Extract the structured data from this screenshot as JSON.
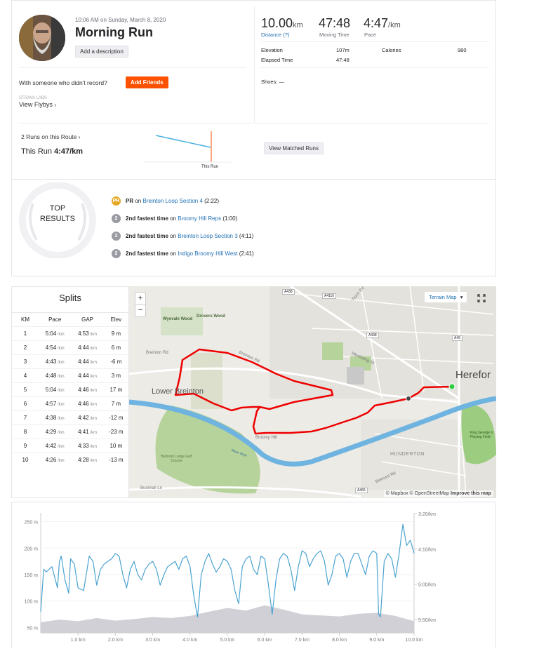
{
  "activity": {
    "datetime": "10:06 AM on Sunday, March 8, 2020",
    "title": "Morning Run",
    "add_description": "Add a description",
    "with_someone": "With someone who didn't record?",
    "add_friends": "Add Friends",
    "labs_label": "STRAVA LABS",
    "view_flybys": "View Flybys"
  },
  "stats": {
    "distance_value": "10.00",
    "distance_unit": "km",
    "distance_label": "Distance (?)",
    "moving_time_value": "47:48",
    "moving_time_label": "Moving Time",
    "pace_value": "4:47",
    "pace_unit": "/km",
    "pace_label": "Pace",
    "elevation_label": "Elevation",
    "elevation_value": "107m",
    "calories_label": "Calories",
    "calories_value": "980",
    "elapsed_label": "Elapsed Time",
    "elapsed_value": "47:48",
    "shoes": "Shoes: —"
  },
  "route": {
    "runs_on_route": "2 Runs on this Route",
    "this_run_label": "This Run",
    "this_run_pace": "4:47/km",
    "chart_label": "This Run",
    "view_matched": "View Matched Runs"
  },
  "top_results": {
    "title_line1": "TOP",
    "title_line2": "RESULTS",
    "items": [
      {
        "badge": "PR",
        "badge_color": "#e5a823",
        "prefix": "PR",
        "on": "on",
        "segment": "Breinton Loop Section 4",
        "time": "(2:22)"
      },
      {
        "badge": "2",
        "badge_color": "#9a9aa2",
        "prefix": "2nd fastest time",
        "on": "on",
        "segment": "Broomy Hill Reps",
        "time": "(1:00)"
      },
      {
        "badge": "2",
        "badge_color": "#9a9aa2",
        "prefix": "2nd fastest time",
        "on": "on",
        "segment": "Breinton Loop Section 3",
        "time": "(4:11)"
      },
      {
        "badge": "2",
        "badge_color": "#9a9aa2",
        "prefix": "2nd fastest time",
        "on": "on",
        "segment": "Indigo Broomy Hill West",
        "time": "(2:41)"
      }
    ]
  },
  "splits": {
    "title": "Splits",
    "headers": [
      "KM",
      "Pace",
      "GAP",
      "Elev"
    ],
    "pace_unit": "/km",
    "rows": [
      {
        "km": "1",
        "pace": "5:04",
        "gap": "4:53",
        "elev": "9 m"
      },
      {
        "km": "2",
        "pace": "4:54",
        "gap": "4:44",
        "elev": "6 m"
      },
      {
        "km": "3",
        "pace": "4:43",
        "gap": "4:44",
        "elev": "-6 m"
      },
      {
        "km": "4",
        "pace": "4:48",
        "gap": "4:44",
        "elev": "3 m"
      },
      {
        "km": "5",
        "pace": "5:04",
        "gap": "4:46",
        "elev": "17 m"
      },
      {
        "km": "6",
        "pace": "4:57",
        "gap": "4:46",
        "elev": "7 m"
      },
      {
        "km": "7",
        "pace": "4:38",
        "gap": "4:42",
        "elev": "-12 m"
      },
      {
        "km": "8",
        "pace": "4:29",
        "gap": "4:41",
        "elev": "-23 m"
      },
      {
        "km": "9",
        "pace": "4:42",
        "gap": "4:33",
        "elev": "10 m"
      },
      {
        "km": "10",
        "pace": "4:26",
        "gap": "4:28",
        "elev": "-13 m"
      }
    ]
  },
  "map": {
    "zoom_in": "+",
    "zoom_out": "−",
    "map_type": "Terrain Map",
    "attribution": "© Mapbox © OpenStreetMap",
    "improve": "Improve this map",
    "labels": {
      "wyevale": "Wyevale Wood",
      "drovers": "Drovers Wood",
      "breinton_rd": "Breinton Rd",
      "breinton_rd2": "Breinton Rd",
      "lower_breinton": "Lower Breinton",
      "broomy_hill": "Broomy Hill",
      "belmont_lodge": "Belmont Lodge Golf Course",
      "hunderton": "HUNDERTON",
      "belmont_rd": "Belmont Rd",
      "hereford": "Herefor",
      "westfaling": "Westfaling St",
      "king_george": "King George V Playing Field",
      "bucknall": "Bucknall Ln",
      "yazor": "Yazor Rd",
      "a438_1": "A438",
      "a4110": "A4110",
      "a438_2": "A438",
      "a49": "A49",
      "a465": "A465",
      "river_wye": "River Wye"
    }
  },
  "chart_data": {
    "type": "line",
    "title": "",
    "xlabel": "",
    "ylabel": "",
    "x_ticks": [
      "1.0 km",
      "2.0 km",
      "3.0 km",
      "4.0 km",
      "5.0 km",
      "6.0 km",
      "7.0 km",
      "8.0 km",
      "9.0 km",
      "10.0 km"
    ],
    "xlim": [
      0,
      10
    ],
    "y_left_ticks": [
      "250 m",
      "200 m",
      "150 m",
      "100 m",
      "50 m"
    ],
    "y_left_lim": [
      40,
      260
    ],
    "y_right_ticks": [
      "3:20/km",
      "4:10/km",
      "5:00/km",
      "5:50/km"
    ],
    "series": [
      {
        "color": "#4aa3d1",
        "x": [
          0,
          0.08,
          0.15,
          0.3,
          0.45,
          0.5,
          0.55,
          0.65,
          0.75,
          0.8,
          0.9,
          1.0,
          1.15,
          1.3,
          1.4,
          1.5,
          1.6,
          1.7,
          1.8,
          1.9,
          2.0,
          2.1,
          2.2,
          2.3,
          2.4,
          2.5,
          2.6,
          2.7,
          2.8,
          2.9,
          3.0,
          3.1,
          3.2,
          3.3,
          3.4,
          3.5,
          3.6,
          3.7,
          3.8,
          3.9,
          4.0,
          4.1,
          4.2,
          4.3,
          4.4,
          4.5,
          4.6,
          4.7,
          4.8,
          4.9,
          5.0,
          5.1,
          5.2,
          5.3,
          5.4,
          5.5,
          5.6,
          5.7,
          5.8,
          5.9,
          6.0,
          6.1,
          6.2,
          6.3,
          6.4,
          6.5,
          6.6,
          6.7,
          6.8,
          6.9,
          7.0,
          7.1,
          7.2,
          7.3,
          7.4,
          7.5,
          7.6,
          7.7,
          7.8,
          7.9,
          8.0,
          8.1,
          8.2,
          8.3,
          8.4,
          8.5,
          8.6,
          8.7,
          8.8,
          8.9,
          9.0,
          9.05,
          9.1,
          9.2,
          9.3,
          9.4,
          9.5,
          9.6,
          9.7,
          9.8,
          9.9,
          10.0
        ],
        "y": [
          80,
          160,
          155,
          165,
          125,
          175,
          185,
          140,
          115,
          180,
          170,
          125,
          120,
          185,
          175,
          130,
          160,
          170,
          175,
          180,
          190,
          185,
          150,
          125,
          160,
          175,
          150,
          140,
          160,
          170,
          175,
          160,
          130,
          150,
          165,
          170,
          175,
          160,
          180,
          185,
          165,
          110,
          70,
          150,
          175,
          190,
          170,
          155,
          165,
          180,
          175,
          160,
          120,
          95,
          165,
          180,
          185,
          160,
          150,
          185,
          180,
          130,
          75,
          140,
          180,
          190,
          185,
          160,
          120,
          165,
          195,
          190,
          165,
          180,
          190,
          195,
          175,
          130,
          150,
          185,
          190,
          180,
          145,
          175,
          190,
          190,
          170,
          150,
          185,
          195,
          190,
          75,
          70,
          175,
          190,
          180,
          145,
          190,
          245,
          205,
          215,
          190
        ]
      },
      {
        "color": "#d0d0d6",
        "x": [
          0,
          0.5,
          1.0,
          1.5,
          2.0,
          2.5,
          3.0,
          3.5,
          4.0,
          4.5,
          5.0,
          5.5,
          6.0,
          6.5,
          7.0,
          7.5,
          8.0,
          8.5,
          9.0,
          9.5,
          10.0
        ],
        "y": [
          60,
          65,
          62,
          68,
          63,
          66,
          70,
          68,
          72,
          80,
          87,
          82,
          92,
          84,
          75,
          73,
          71,
          76,
          78,
          72,
          62
        ]
      }
    ]
  }
}
